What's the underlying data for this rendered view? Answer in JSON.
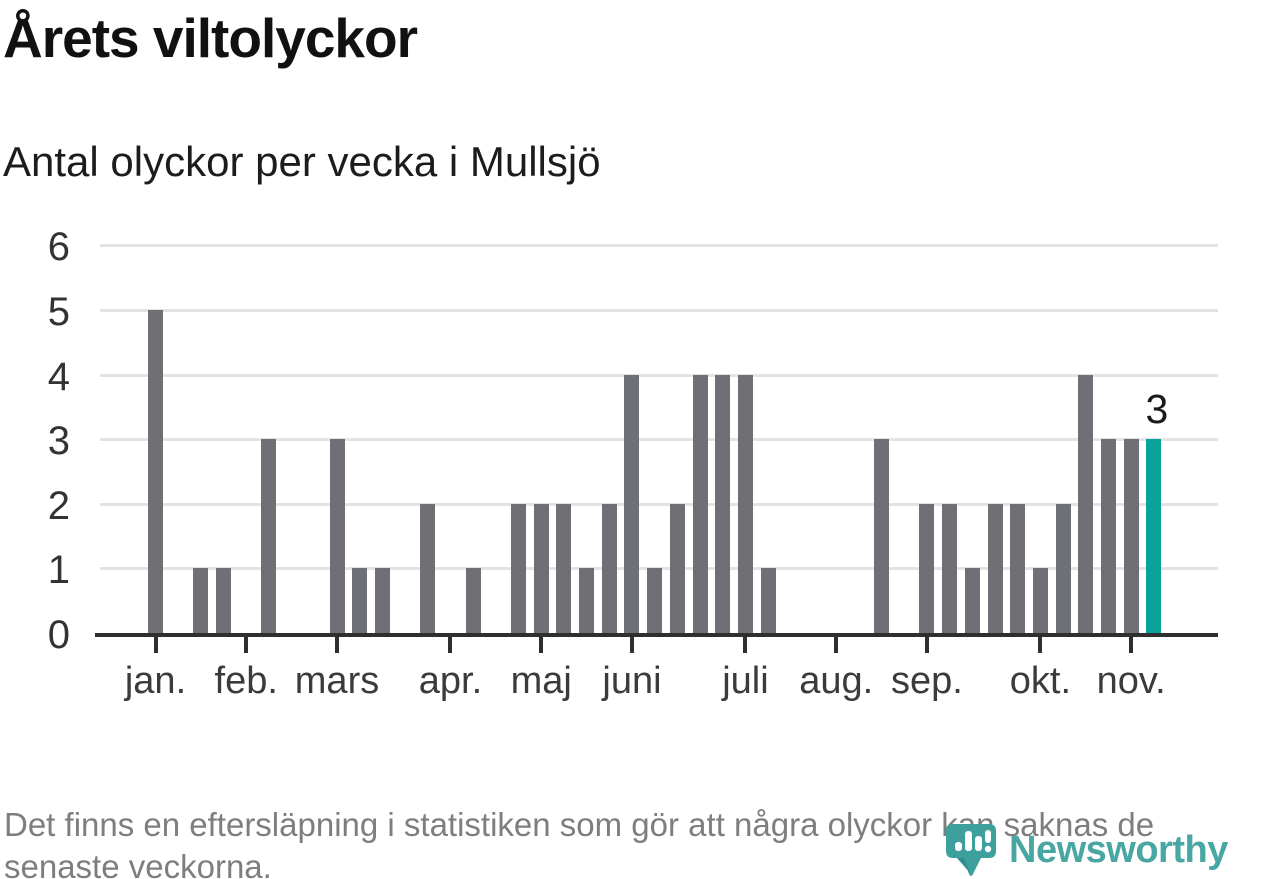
{
  "header": {
    "title": "Årets viltolyckor",
    "subtitle": "Antal olyckor per vecka i Mullsjö"
  },
  "chart_data": {
    "type": "bar",
    "title": "Årets viltolyckor",
    "subtitle": "Antal olyckor per vecka i Mullsjö",
    "x_unit": "vecka",
    "weeks": 45,
    "values": [
      5,
      0,
      1,
      1,
      0,
      3,
      0,
      0,
      3,
      1,
      1,
      0,
      2,
      0,
      1,
      0,
      2,
      2,
      2,
      1,
      2,
      4,
      1,
      2,
      4,
      4,
      4,
      1,
      0,
      0,
      0,
      0,
      3,
      0,
      2,
      2,
      1,
      2,
      2,
      1,
      2,
      4,
      3,
      3,
      3
    ],
    "highlight_last": true,
    "last_value_label": "3",
    "month_ticks": [
      {
        "label": "jan.",
        "week": 1
      },
      {
        "label": "feb.",
        "week": 5
      },
      {
        "label": "mars",
        "week": 9
      },
      {
        "label": "apr.",
        "week": 14
      },
      {
        "label": "maj",
        "week": 18
      },
      {
        "label": "juni",
        "week": 22
      },
      {
        "label": "juli",
        "week": 27
      },
      {
        "label": "aug.",
        "week": 31
      },
      {
        "label": "sep.",
        "week": 35
      },
      {
        "label": "okt.",
        "week": 40
      },
      {
        "label": "nov.",
        "week": 44
      }
    ],
    "y_ticks": [
      0,
      1,
      2,
      3,
      4,
      5,
      6
    ],
    "ylim": [
      0,
      6
    ],
    "grid": true,
    "legend": null,
    "colors": {
      "bar": "#6f6f76",
      "highlight": "#0aa39a",
      "grid": "#e3e3e3",
      "axis": "#2f2f2f",
      "annotation": "#1a1a1a"
    }
  },
  "footer": {
    "note": "Det finns en eftersläpning i statistiken som gör att några olyckor kan saknas de senaste veckorna."
  },
  "logo": {
    "text": "Newsworthy",
    "color": "#48a7a3",
    "icon": "newsworthy-pin-barchart-icon"
  }
}
